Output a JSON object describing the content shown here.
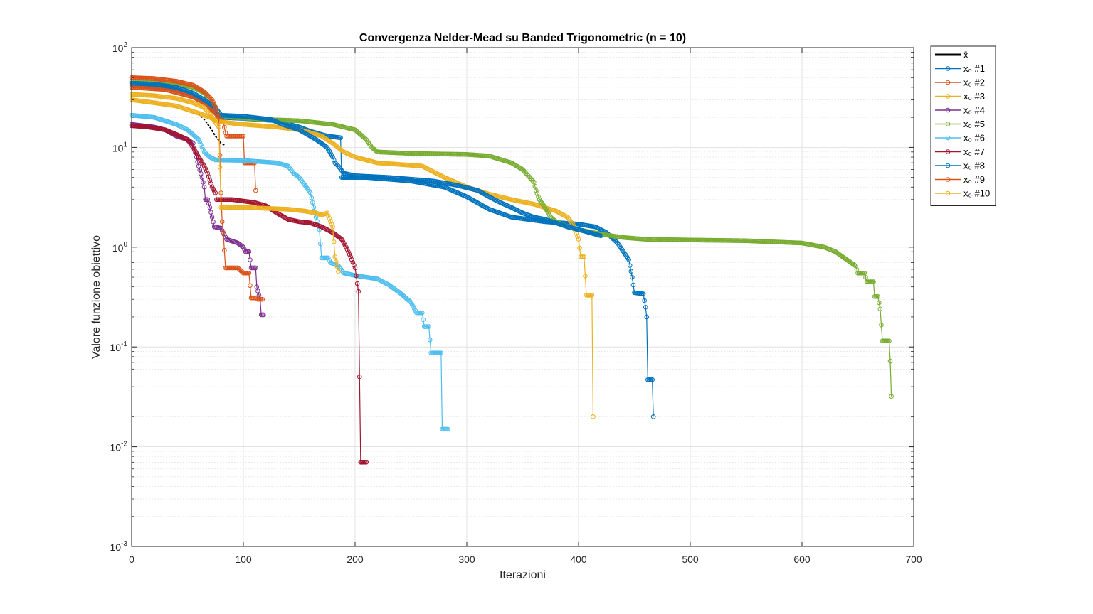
{
  "chart_data": {
    "type": "line",
    "title": "Convergenza Nelder-Mead su Banded Trigonometric (n = 10)",
    "xlabel": "Iterazioni",
    "ylabel": "Valore funzione obiettivo",
    "xlim": [
      0,
      700
    ],
    "ylim": [
      0.001,
      100
    ],
    "yscale": "log",
    "grid": true,
    "legend_position": "outside-top-right",
    "x_ticks": [
      "0",
      "100",
      "200",
      "300",
      "400",
      "500",
      "600",
      "700"
    ],
    "y_ticks": [
      {
        "base": "10",
        "exp": "-3"
      },
      {
        "base": "10",
        "exp": "-2"
      },
      {
        "base": "10",
        "exp": "-1"
      },
      {
        "base": "10",
        "exp": "0"
      },
      {
        "base": "10",
        "exp": "1"
      },
      {
        "base": "10",
        "exp": "2"
      }
    ],
    "series": [
      {
        "name": "x̄",
        "color": "#000000",
        "marker": false,
        "points": [
          [
            60,
            22
          ],
          [
            65,
            19
          ],
          [
            70,
            16
          ],
          [
            75,
            13
          ],
          [
            80,
            11
          ],
          [
            84,
            10.5
          ]
        ]
      },
      {
        "name": "x₀ #1",
        "color": "#0072BD",
        "marker": true,
        "points": [
          [
            0,
            42
          ],
          [
            20,
            41
          ],
          [
            40,
            38
          ],
          [
            55,
            33
          ],
          [
            65,
            28
          ],
          [
            72,
            24
          ],
          [
            80,
            20
          ],
          [
            100,
            19.5
          ],
          [
            130,
            18.5
          ],
          [
            150,
            16
          ],
          [
            160,
            14.5
          ],
          [
            175,
            13
          ],
          [
            187,
            12.5
          ],
          [
            188,
            5
          ],
          [
            210,
            5
          ],
          [
            250,
            4.6
          ],
          [
            280,
            4
          ],
          [
            300,
            3.2
          ],
          [
            320,
            2.4
          ],
          [
            340,
            2
          ],
          [
            370,
            1.8
          ],
          [
            400,
            1.7
          ],
          [
            415,
            1.6
          ],
          [
            425,
            1.4
          ],
          [
            435,
            1.1
          ],
          [
            445,
            0.75
          ],
          [
            448,
            0.5
          ],
          [
            450,
            0.35
          ],
          [
            458,
            0.34
          ],
          [
            460,
            0.25
          ],
          [
            461,
            0.2
          ],
          [
            462,
            0.047
          ],
          [
            466,
            0.047
          ],
          [
            467,
            0.02
          ]
        ]
      },
      {
        "name": "x₀ #2",
        "color": "#D95319",
        "marker": true,
        "points": [
          [
            0,
            40
          ],
          [
            30,
            38
          ],
          [
            55,
            32
          ],
          [
            65,
            28
          ],
          [
            75,
            22
          ],
          [
            80,
            19
          ],
          [
            82,
            18
          ],
          [
            84,
            14
          ],
          [
            85,
            13
          ],
          [
            100,
            13
          ],
          [
            101,
            7
          ],
          [
            110,
            7
          ],
          [
            111,
            3.7
          ]
        ]
      },
      {
        "name": "x₀ #3",
        "color": "#EDB120",
        "marker": true,
        "points": [
          [
            0,
            30
          ],
          [
            20,
            28
          ],
          [
            40,
            26
          ],
          [
            60,
            22
          ],
          [
            70,
            20
          ],
          [
            80,
            18
          ],
          [
            100,
            17
          ],
          [
            130,
            16
          ],
          [
            150,
            15
          ],
          [
            160,
            14
          ],
          [
            170,
            13
          ],
          [
            180,
            11
          ],
          [
            190,
            9
          ],
          [
            200,
            8
          ],
          [
            220,
            7
          ],
          [
            260,
            6.5
          ],
          [
            280,
            5
          ],
          [
            300,
            4
          ],
          [
            320,
            3.4
          ],
          [
            340,
            3
          ],
          [
            360,
            2.7
          ],
          [
            380,
            2.3
          ],
          [
            390,
            2
          ],
          [
            395,
            1.7
          ],
          [
            400,
            1.2
          ],
          [
            402,
            0.8
          ],
          [
            405,
            0.8
          ],
          [
            407,
            0.33
          ],
          [
            412,
            0.33
          ],
          [
            413,
            0.02
          ]
        ]
      },
      {
        "name": "x₀ #4",
        "color": "#7E2F8E",
        "marker": true,
        "points": [
          [
            0,
            17
          ],
          [
            20,
            16
          ],
          [
            30,
            15
          ],
          [
            40,
            13
          ],
          [
            50,
            12
          ],
          [
            55,
            11
          ],
          [
            58,
            8
          ],
          [
            60,
            6.5
          ],
          [
            63,
            5
          ],
          [
            65,
            4
          ],
          [
            66,
            3
          ],
          [
            68,
            3
          ],
          [
            70,
            2.5
          ],
          [
            72,
            2
          ],
          [
            74,
            1.6
          ],
          [
            80,
            1.55
          ],
          [
            85,
            1.2
          ],
          [
            95,
            1.1
          ],
          [
            100,
            1
          ],
          [
            102,
            0.9
          ],
          [
            105,
            0.9
          ],
          [
            107,
            0.62
          ],
          [
            111,
            0.62
          ],
          [
            112,
            0.4
          ],
          [
            115,
            0.3
          ],
          [
            116,
            0.21
          ],
          [
            118,
            0.21
          ]
        ]
      },
      {
        "name": "x₀ #5",
        "color": "#77AC30",
        "marker": true,
        "points": [
          [
            0,
            46
          ],
          [
            20,
            45
          ],
          [
            40,
            43
          ],
          [
            55,
            40
          ],
          [
            65,
            35
          ],
          [
            70,
            30
          ],
          [
            75,
            25
          ],
          [
            80,
            21
          ],
          [
            90,
            20
          ],
          [
            120,
            19
          ],
          [
            150,
            18.5
          ],
          [
            180,
            17
          ],
          [
            200,
            15
          ],
          [
            210,
            12
          ],
          [
            215,
            10
          ],
          [
            220,
            9
          ],
          [
            250,
            8.7
          ],
          [
            300,
            8.5
          ],
          [
            320,
            8.2
          ],
          [
            340,
            7
          ],
          [
            350,
            6
          ],
          [
            360,
            4.5
          ],
          [
            362,
            3.7
          ],
          [
            365,
            3
          ],
          [
            370,
            2.5
          ],
          [
            375,
            2
          ],
          [
            380,
            1.8
          ],
          [
            390,
            1.6
          ],
          [
            400,
            1.5
          ],
          [
            420,
            1.35
          ],
          [
            440,
            1.25
          ],
          [
            460,
            1.2
          ],
          [
            500,
            1.18
          ],
          [
            550,
            1.16
          ],
          [
            600,
            1.1
          ],
          [
            620,
            1
          ],
          [
            630,
            0.9
          ],
          [
            640,
            0.75
          ],
          [
            648,
            0.65
          ],
          [
            650,
            0.55
          ],
          [
            656,
            0.55
          ],
          [
            658,
            0.45
          ],
          [
            664,
            0.45
          ],
          [
            665,
            0.32
          ],
          [
            668,
            0.32
          ],
          [
            670,
            0.24
          ],
          [
            672,
            0.115
          ],
          [
            678,
            0.115
          ],
          [
            679,
            0.072
          ],
          [
            680,
            0.032
          ]
        ]
      },
      {
        "name": "x₀ #6",
        "color": "#4DBEEE",
        "marker": true,
        "points": [
          [
            0,
            21
          ],
          [
            20,
            20
          ],
          [
            40,
            17
          ],
          [
            50,
            15
          ],
          [
            60,
            12
          ],
          [
            65,
            9
          ],
          [
            70,
            8
          ],
          [
            75,
            7.5
          ],
          [
            100,
            7.4
          ],
          [
            130,
            7
          ],
          [
            140,
            6.5
          ],
          [
            145,
            5.5
          ],
          [
            150,
            5
          ],
          [
            155,
            4.2
          ],
          [
            160,
            3.5
          ],
          [
            165,
            2
          ],
          [
            168,
            1.5
          ],
          [
            170,
            0.78
          ],
          [
            176,
            0.78
          ],
          [
            178,
            0.7
          ],
          [
            185,
            0.65
          ],
          [
            190,
            0.55
          ],
          [
            200,
            0.52
          ],
          [
            220,
            0.48
          ],
          [
            230,
            0.42
          ],
          [
            240,
            0.35
          ],
          [
            250,
            0.28
          ],
          [
            255,
            0.22
          ],
          [
            260,
            0.22
          ],
          [
            262,
            0.16
          ],
          [
            266,
            0.16
          ],
          [
            268,
            0.087
          ],
          [
            277,
            0.087
          ],
          [
            278,
            0.015
          ],
          [
            283,
            0.015
          ]
        ]
      },
      {
        "name": "x₀ #7",
        "color": "#A2142F",
        "marker": true,
        "points": [
          [
            0,
            16.5
          ],
          [
            15,
            16
          ],
          [
            30,
            15
          ],
          [
            40,
            13.5
          ],
          [
            50,
            12
          ],
          [
            55,
            10
          ],
          [
            60,
            8
          ],
          [
            65,
            6.5
          ],
          [
            68,
            5.5
          ],
          [
            72,
            4
          ],
          [
            75,
            3.5
          ],
          [
            76,
            3
          ],
          [
            90,
            3
          ],
          [
            110,
            2.8
          ],
          [
            120,
            2.6
          ],
          [
            130,
            2.2
          ],
          [
            140,
            1.9
          ],
          [
            150,
            1.8
          ],
          [
            160,
            1.75
          ],
          [
            170,
            1.6
          ],
          [
            180,
            1.4
          ],
          [
            188,
            1.2
          ],
          [
            192,
            1
          ],
          [
            196,
            0.8
          ],
          [
            200,
            0.62
          ],
          [
            203,
            0.36
          ],
          [
            205,
            0.007
          ],
          [
            210,
            0.007
          ]
        ]
      },
      {
        "name": "x₀ #8",
        "color": "#0072BD",
        "marker": true,
        "points": [
          [
            0,
            44
          ],
          [
            20,
            43
          ],
          [
            40,
            40
          ],
          [
            55,
            35
          ],
          [
            65,
            30
          ],
          [
            75,
            25
          ],
          [
            80,
            21
          ],
          [
            100,
            20.5
          ],
          [
            125,
            19
          ],
          [
            135,
            17
          ],
          [
            150,
            15
          ],
          [
            165,
            12
          ],
          [
            175,
            10
          ],
          [
            180,
            8
          ],
          [
            182,
            7
          ],
          [
            185,
            6.5
          ],
          [
            190,
            5.5
          ],
          [
            200,
            5.2
          ],
          [
            230,
            5
          ],
          [
            250,
            4.8
          ],
          [
            270,
            4.6
          ],
          [
            290,
            4.2
          ],
          [
            310,
            3.7
          ],
          [
            320,
            3.2
          ],
          [
            330,
            2.8
          ],
          [
            340,
            2.5
          ],
          [
            350,
            2.2
          ],
          [
            360,
            2
          ],
          [
            370,
            1.9
          ],
          [
            380,
            1.75
          ],
          [
            390,
            1.6
          ],
          [
            400,
            1.5
          ],
          [
            410,
            1.4
          ],
          [
            420,
            1.3
          ]
        ]
      },
      {
        "name": "x₀ #9",
        "color": "#D95319",
        "marker": true,
        "points": [
          [
            0,
            50
          ],
          [
            20,
            49
          ],
          [
            40,
            46
          ],
          [
            55,
            42
          ],
          [
            65,
            36
          ],
          [
            72,
            30
          ],
          [
            76,
            24
          ],
          [
            78,
            20
          ],
          [
            80,
            3.5
          ],
          [
            81,
            1.8
          ],
          [
            82,
            1.4
          ],
          [
            84,
            0.62
          ],
          [
            95,
            0.62
          ],
          [
            100,
            0.55
          ],
          [
            105,
            0.55
          ],
          [
            107,
            0.31
          ],
          [
            112,
            0.31
          ],
          [
            113,
            0.3
          ],
          [
            117,
            0.3
          ]
        ]
      },
      {
        "name": "x₀ #10",
        "color": "#EDB120",
        "marker": true,
        "points": [
          [
            0,
            34
          ],
          [
            20,
            33
          ],
          [
            40,
            31
          ],
          [
            55,
            28
          ],
          [
            65,
            25
          ],
          [
            72,
            20
          ],
          [
            78,
            16
          ],
          [
            80,
            2.5
          ],
          [
            100,
            2.5
          ],
          [
            140,
            2.4
          ],
          [
            155,
            2.3
          ],
          [
            165,
            2.2
          ],
          [
            170,
            2.1
          ],
          [
            175,
            2.2
          ],
          [
            180,
            1.6
          ],
          [
            182,
            0.8
          ],
          [
            185,
            0.57
          ]
        ]
      }
    ],
    "legend_entries": [
      "x̄",
      "x₀ #1",
      "x₀ #2",
      "x₀ #3",
      "x₀ #4",
      "x₀ #5",
      "x₀ #6",
      "x₀ #7",
      "x₀ #8",
      "x₀ #9",
      "x₀ #10"
    ]
  }
}
